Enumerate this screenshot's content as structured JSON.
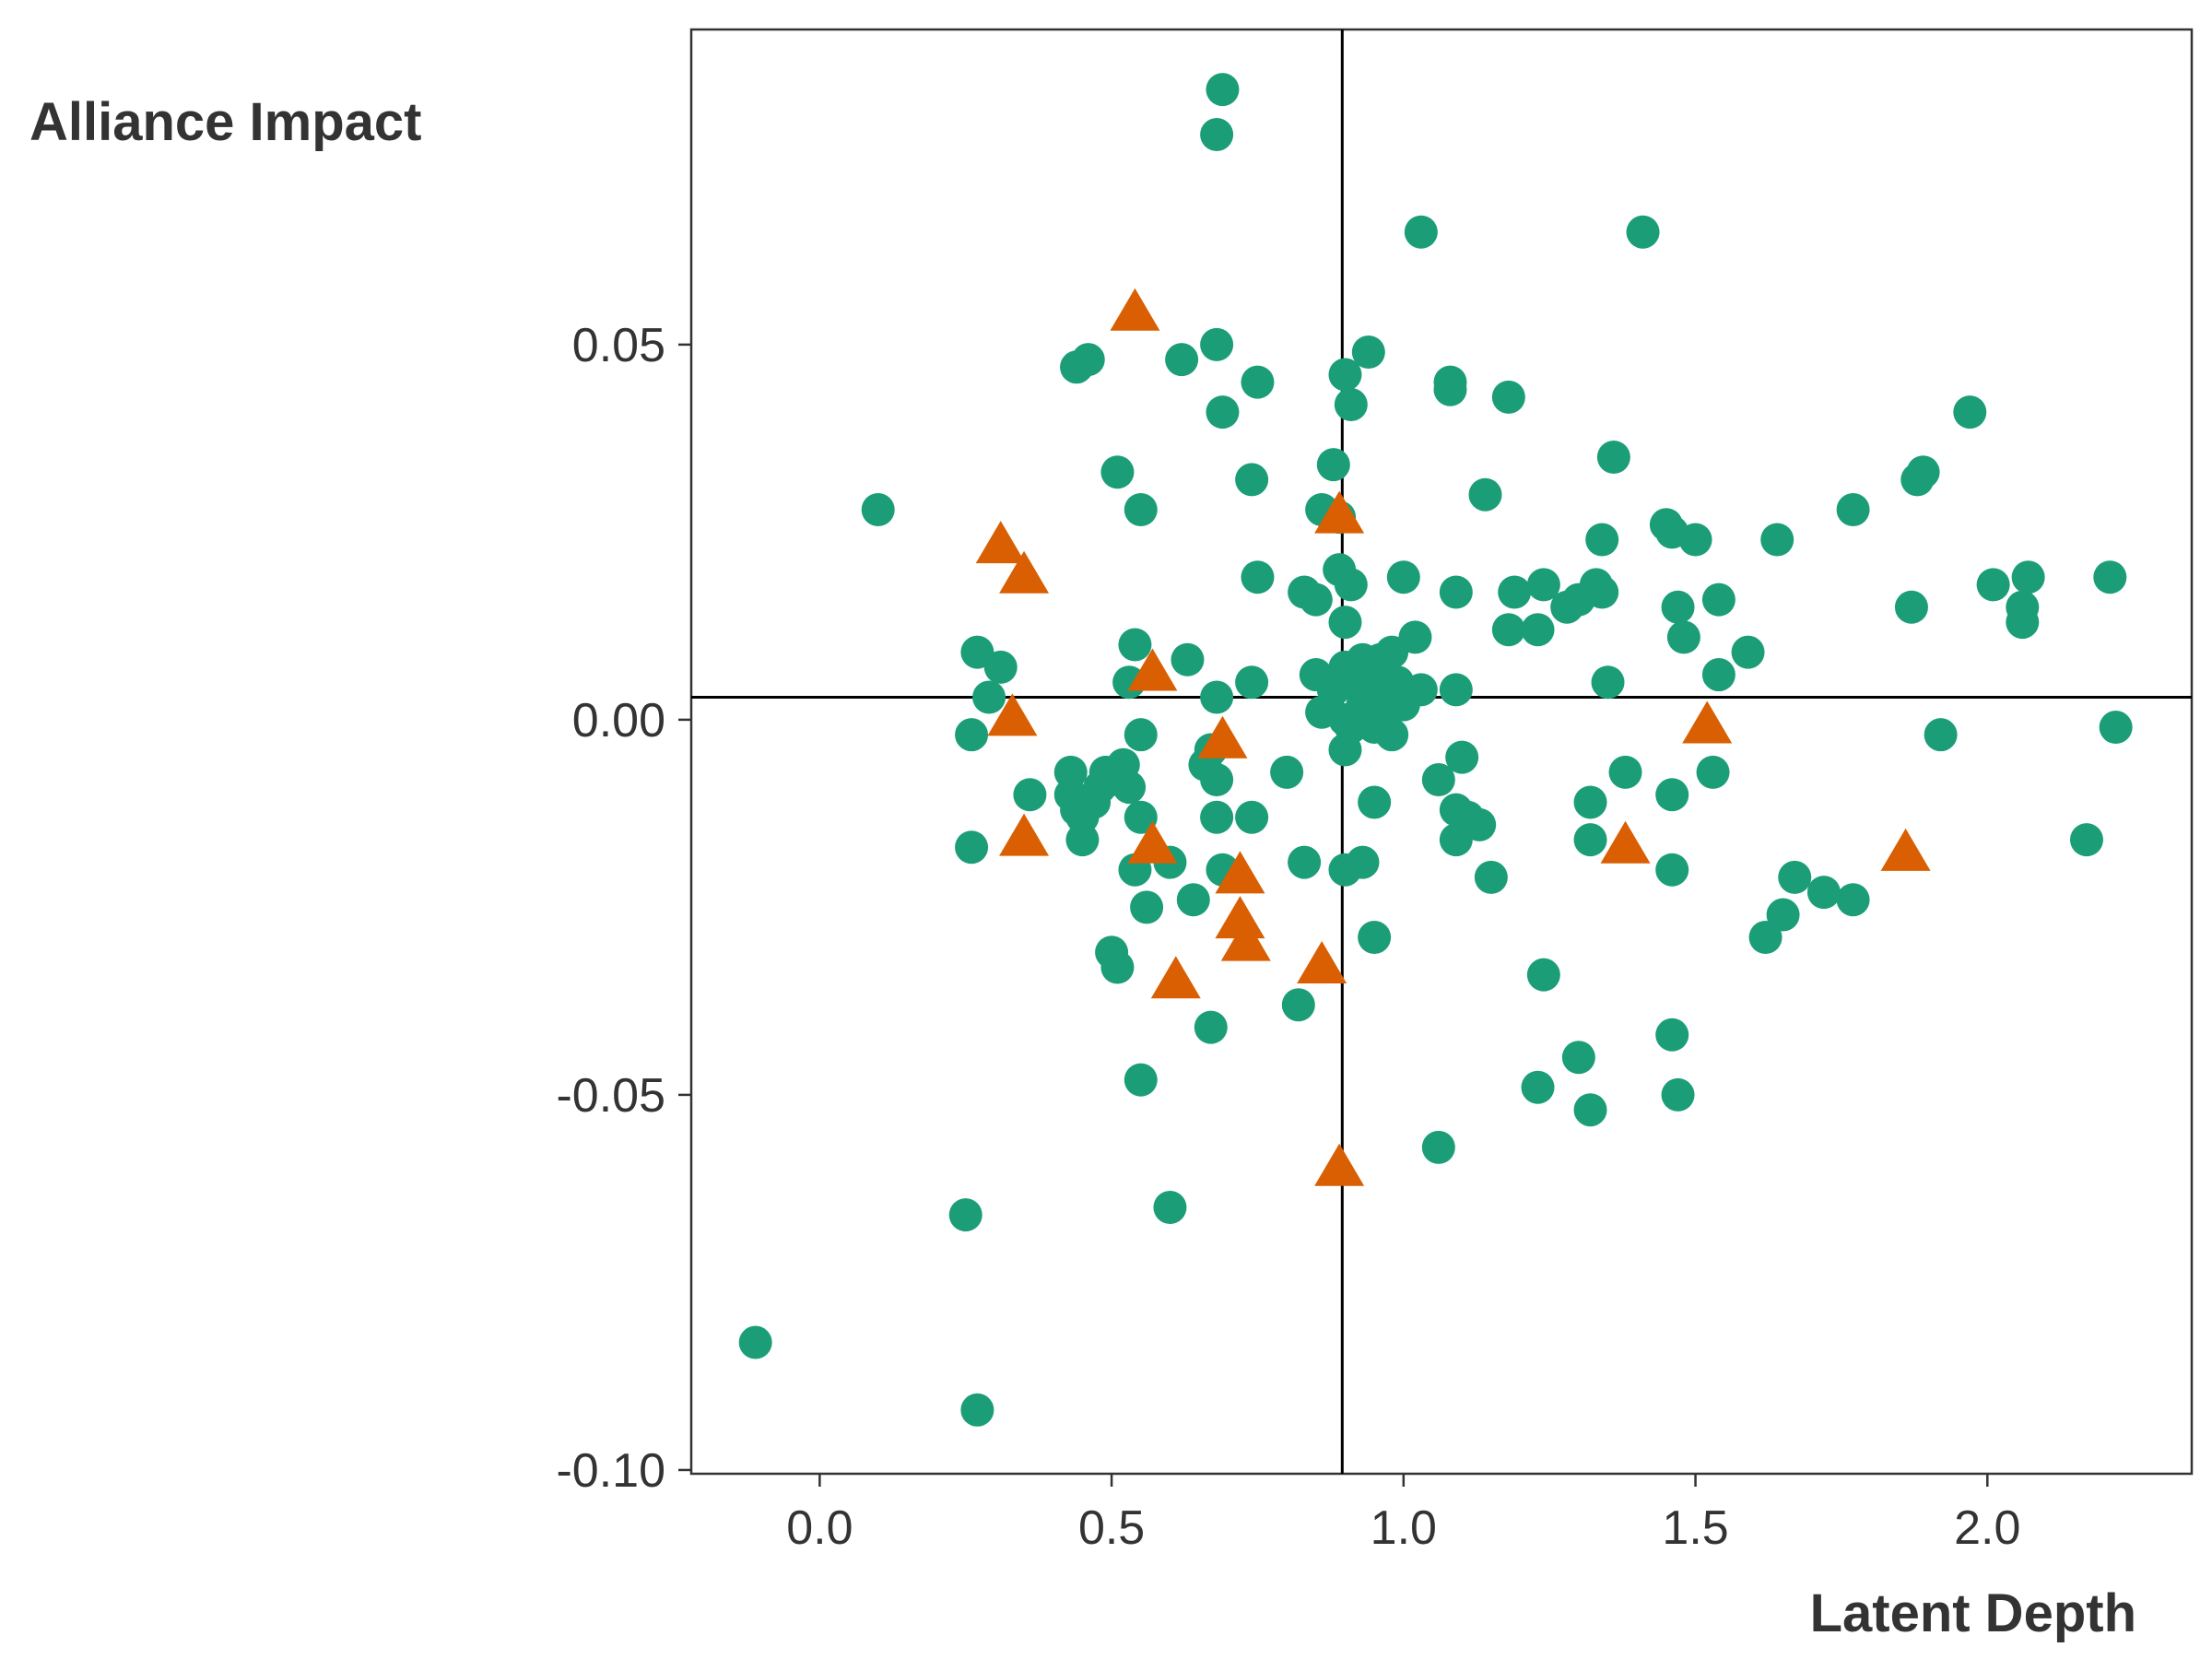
{
  "chart_data": {
    "type": "scatter",
    "xlabel": "Latent Depth",
    "ylabel": "Alliance Impact",
    "xlim": [
      -0.22,
      2.35
    ],
    "ylim": [
      -0.1005,
      0.092
    ],
    "x_ticks": [
      "0.0",
      "0.5",
      "1.0",
      "1.5",
      "2.0"
    ],
    "x_tick_values": [
      0.0,
      0.5,
      1.0,
      1.5,
      2.0
    ],
    "y_ticks": [
      "0.05",
      "0.00",
      "-0.05",
      "-0.10"
    ],
    "y_tick_values": [
      0.05,
      0.0,
      -0.05,
      -0.1
    ],
    "reference_lines": {
      "vertical_x": 0.895,
      "horizontal_y": 0.003
    },
    "grid": false,
    "legend": "none",
    "colors": {
      "circle": "#1b9e77",
      "triangle": "#d95f02",
      "axis": "#000000",
      "text": "#333333"
    },
    "series": [
      {
        "marker": "circle",
        "color": "#1b9e77",
        "points": [
          [
            0.69,
            0.084
          ],
          [
            0.68,
            0.078
          ],
          [
            1.03,
            0.065
          ],
          [
            1.41,
            0.065
          ],
          [
            0.46,
            0.048
          ],
          [
            0.44,
            0.047
          ],
          [
            0.62,
            0.048
          ],
          [
            0.68,
            0.05
          ],
          [
            0.75,
            0.045
          ],
          [
            0.9,
            0.046
          ],
          [
            0.94,
            0.049
          ],
          [
            1.08,
            0.045
          ],
          [
            1.08,
            0.044
          ],
          [
            1.18,
            0.043
          ],
          [
            0.69,
            0.041
          ],
          [
            0.91,
            0.042
          ],
          [
            1.97,
            0.041
          ],
          [
            0.51,
            0.033
          ],
          [
            0.74,
            0.032
          ],
          [
            0.88,
            0.034
          ],
          [
            1.36,
            0.035
          ],
          [
            1.14,
            0.03
          ],
          [
            1.88,
            0.032
          ],
          [
            1.89,
            0.033
          ],
          [
            0.1,
            0.028
          ],
          [
            0.55,
            0.028
          ],
          [
            0.86,
            0.028
          ],
          [
            0.89,
            0.027
          ],
          [
            1.45,
            0.026
          ],
          [
            1.46,
            0.025
          ],
          [
            1.5,
            0.024
          ],
          [
            1.77,
            0.028
          ],
          [
            1.64,
            0.024
          ],
          [
            1.34,
            0.024
          ],
          [
            0.75,
            0.019
          ],
          [
            0.83,
            0.017
          ],
          [
            0.89,
            0.02
          ],
          [
            0.91,
            0.018
          ],
          [
            0.85,
            0.016
          ],
          [
            1.0,
            0.019
          ],
          [
            1.09,
            0.017
          ],
          [
            1.19,
            0.017
          ],
          [
            1.24,
            0.018
          ],
          [
            1.33,
            0.018
          ],
          [
            1.34,
            0.017
          ],
          [
            1.3,
            0.016
          ],
          [
            1.28,
            0.015
          ],
          [
            1.47,
            0.015
          ],
          [
            1.54,
            0.016
          ],
          [
            1.87,
            0.015
          ],
          [
            2.01,
            0.018
          ],
          [
            2.07,
            0.019
          ],
          [
            2.21,
            0.019
          ],
          [
            2.06,
            0.015
          ],
          [
            0.9,
            0.013
          ],
          [
            1.02,
            0.011
          ],
          [
            0.98,
            0.009
          ],
          [
            1.18,
            0.012
          ],
          [
            1.23,
            0.012
          ],
          [
            1.48,
            0.011
          ],
          [
            1.59,
            0.009
          ],
          [
            2.06,
            0.013
          ],
          [
            0.27,
            0.009
          ],
          [
            0.31,
            0.007
          ],
          [
            0.54,
            0.01
          ],
          [
            0.63,
            0.008
          ],
          [
            0.53,
            0.005
          ],
          [
            0.29,
            0.003
          ],
          [
            0.68,
            0.003
          ],
          [
            0.74,
            0.005
          ],
          [
            1.03,
            0.004
          ],
          [
            1.09,
            0.004
          ],
          [
            1.35,
            0.005
          ],
          [
            1.54,
            0.006
          ],
          [
            0.85,
            0.006
          ],
          [
            0.86,
            0.001
          ],
          [
            0.88,
            0.004
          ],
          [
            0.9,
            0.007
          ],
          [
            0.92,
            0.005
          ],
          [
            0.93,
            0.002
          ],
          [
            0.94,
            0.006
          ],
          [
            0.95,
            0.004
          ],
          [
            0.96,
            0.001
          ],
          [
            0.97,
            0.006
          ],
          [
            0.98,
            0.003
          ],
          [
            0.99,
            0.005
          ],
          [
            1.0,
            0.002
          ],
          [
            0.93,
            0.008
          ],
          [
            0.96,
            0.008
          ],
          [
            0.9,
            0.0
          ],
          [
            0.91,
            -0.001
          ],
          [
            0.95,
            -0.001
          ],
          [
            0.98,
            -0.002
          ],
          [
            0.26,
            -0.002
          ],
          [
            0.55,
            -0.002
          ],
          [
            0.67,
            -0.004
          ],
          [
            0.66,
            -0.006
          ],
          [
            0.68,
            -0.008
          ],
          [
            0.9,
            -0.004
          ],
          [
            1.1,
            -0.005
          ],
          [
            1.92,
            -0.002
          ],
          [
            2.22,
            -0.001
          ],
          [
            1.38,
            -0.007
          ],
          [
            1.53,
            -0.007
          ],
          [
            0.36,
            -0.01
          ],
          [
            0.43,
            -0.007
          ],
          [
            0.43,
            -0.01
          ],
          [
            0.44,
            -0.012
          ],
          [
            0.45,
            -0.013
          ],
          [
            0.47,
            -0.011
          ],
          [
            0.48,
            -0.009
          ],
          [
            0.49,
            -0.007
          ],
          [
            0.5,
            -0.008
          ],
          [
            0.52,
            -0.006
          ],
          [
            0.53,
            -0.009
          ],
          [
            0.8,
            -0.007
          ],
          [
            1.06,
            -0.008
          ],
          [
            1.09,
            -0.012
          ],
          [
            1.11,
            -0.013
          ],
          [
            1.13,
            -0.014
          ],
          [
            0.95,
            -0.011
          ],
          [
            1.32,
            -0.011
          ],
          [
            1.46,
            -0.01
          ],
          [
            0.55,
            -0.013
          ],
          [
            0.68,
            -0.013
          ],
          [
            0.74,
            -0.013
          ],
          [
            0.45,
            -0.016
          ],
          [
            0.26,
            -0.017
          ],
          [
            1.09,
            -0.016
          ],
          [
            1.32,
            -0.016
          ],
          [
            2.17,
            -0.016
          ],
          [
            0.54,
            -0.02
          ],
          [
            0.6,
            -0.019
          ],
          [
            0.69,
            -0.02
          ],
          [
            0.83,
            -0.019
          ],
          [
            0.9,
            -0.02
          ],
          [
            0.93,
            -0.019
          ],
          [
            1.15,
            -0.021
          ],
          [
            1.46,
            -0.02
          ],
          [
            1.67,
            -0.021
          ],
          [
            1.72,
            -0.023
          ],
          [
            1.77,
            -0.024
          ],
          [
            0.56,
            -0.025
          ],
          [
            0.64,
            -0.024
          ],
          [
            0.95,
            -0.029
          ],
          [
            1.62,
            -0.029
          ],
          [
            1.65,
            -0.026
          ],
          [
            0.5,
            -0.031
          ],
          [
            0.51,
            -0.033
          ],
          [
            1.24,
            -0.034
          ],
          [
            0.82,
            -0.038
          ],
          [
            0.67,
            -0.041
          ],
          [
            1.46,
            -0.042
          ],
          [
            1.3,
            -0.045
          ],
          [
            0.55,
            -0.048
          ],
          [
            1.23,
            -0.049
          ],
          [
            1.47,
            -0.05
          ],
          [
            1.32,
            -0.052
          ],
          [
            1.06,
            -0.057
          ],
          [
            0.25,
            -0.066
          ],
          [
            0.6,
            -0.065
          ],
          [
            -0.11,
            -0.083
          ],
          [
            0.27,
            -0.092
          ]
        ]
      },
      {
        "marker": "triangle",
        "color": "#d95f02",
        "points": [
          [
            0.54,
            0.054
          ],
          [
            0.31,
            0.023
          ],
          [
            0.35,
            0.019
          ],
          [
            0.89,
            0.027
          ],
          [
            0.57,
            0.006
          ],
          [
            0.33,
            0.0
          ],
          [
            0.69,
            -0.003
          ],
          [
            1.52,
            -0.001
          ],
          [
            0.35,
            -0.016
          ],
          [
            0.57,
            -0.017
          ],
          [
            1.38,
            -0.017
          ],
          [
            1.86,
            -0.018
          ],
          [
            0.72,
            -0.021
          ],
          [
            0.72,
            -0.027
          ],
          [
            0.73,
            -0.03
          ],
          [
            0.86,
            -0.033
          ],
          [
            0.61,
            -0.035
          ],
          [
            0.89,
            -0.06
          ]
        ]
      }
    ]
  }
}
